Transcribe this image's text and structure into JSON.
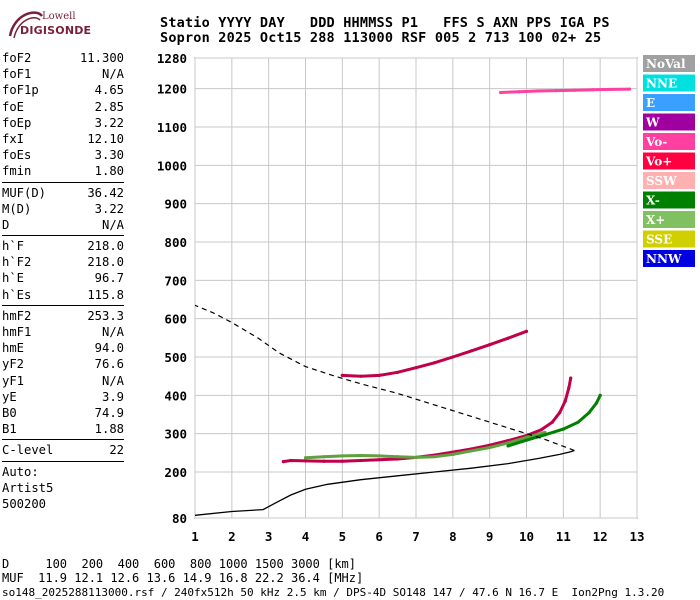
{
  "logo": {
    "line1": "Lowell",
    "line2": "DIGISONDE"
  },
  "header": {
    "line1": "Statio YYYY DAY   DDD HHMMSS P1   FFS S AXN PPS IGA PS",
    "line2": "Sopron 2025 Oct15 288 113000 RSF 005 2 713 100 02+ 25"
  },
  "params": {
    "group1": [
      {
        "name": "foF2",
        "value": "11.300"
      },
      {
        "name": "foF1",
        "value": "N/A"
      },
      {
        "name": "foF1p",
        "value": "4.65"
      },
      {
        "name": "foE",
        "value": "2.85"
      },
      {
        "name": "foEp",
        "value": "3.22"
      },
      {
        "name": "fxI",
        "value": "12.10"
      },
      {
        "name": "foEs",
        "value": "3.30"
      },
      {
        "name": "fmin",
        "value": "1.80"
      }
    ],
    "group2": [
      {
        "name": "MUF(D)",
        "value": "36.42"
      },
      {
        "name": "M(D)",
        "value": "3.22"
      },
      {
        "name": "D",
        "value": "N/A"
      }
    ],
    "group3": [
      {
        "name": "h`F",
        "value": "218.0"
      },
      {
        "name": "h`F2",
        "value": "218.0"
      },
      {
        "name": "h`E",
        "value": "96.7"
      },
      {
        "name": "h`Es",
        "value": "115.8"
      }
    ],
    "group4": [
      {
        "name": "hmF2",
        "value": "253.3"
      },
      {
        "name": "hmF1",
        "value": "N/A"
      },
      {
        "name": "hmE",
        "value": "94.0"
      },
      {
        "name": "yF2",
        "value": "76.6"
      },
      {
        "name": "yF1",
        "value": "N/A"
      },
      {
        "name": "yE",
        "value": "3.9"
      },
      {
        "name": "B0",
        "value": "74.9"
      },
      {
        "name": "B1",
        "value": "1.88"
      }
    ],
    "group5": [
      {
        "name": "C-level",
        "value": "22"
      }
    ],
    "auto": [
      "Auto:",
      "Artist5",
      "500200"
    ]
  },
  "chart_data": {
    "type": "scatter",
    "xlim": [
      1,
      13
    ],
    "ylim": [
      80,
      1280
    ],
    "x_ticks": [
      "1",
      "2",
      "3",
      "4",
      "5",
      "6",
      "7",
      "8",
      "9",
      "10",
      "11",
      "12",
      "13"
    ],
    "y_ticks": [
      "80",
      "200",
      "300",
      "400",
      "500",
      "600",
      "700",
      "800",
      "900",
      "1000",
      "1100",
      "1200",
      "1280"
    ],
    "grid": true,
    "legend": [
      {
        "label": "NoVal",
        "color": "#a0a0a0"
      },
      {
        "label": "NNE",
        "color": "#00e0e0"
      },
      {
        "label": "E",
        "color": "#3aa0ff"
      },
      {
        "label": "W",
        "color": "#a000a0"
      },
      {
        "label": "Vo-",
        "color": "#ff40a0"
      },
      {
        "label": "Vo+",
        "color": "#ff0040"
      },
      {
        "label": "SSW",
        "color": "#ffb0b0"
      },
      {
        "label": "X-",
        "color": "#008000"
      },
      {
        "label": "X+",
        "color": "#80c060"
      },
      {
        "label": "SSE",
        "color": "#d0d000"
      },
      {
        "label": "NNW",
        "color": "#0000e0"
      }
    ],
    "series": [
      {
        "color": "#c0004a",
        "points": [
          [
            3.4,
            227
          ],
          [
            3.6,
            230
          ],
          [
            4,
            229
          ],
          [
            4.5,
            228
          ],
          [
            5,
            228
          ],
          [
            5.5,
            230
          ],
          [
            6,
            232
          ],
          [
            6.5,
            234
          ],
          [
            7,
            238
          ],
          [
            7.5,
            244
          ],
          [
            8,
            252
          ],
          [
            8.5,
            260
          ],
          [
            9,
            270
          ],
          [
            9.5,
            282
          ],
          [
            10,
            295
          ],
          [
            10.4,
            310
          ],
          [
            10.7,
            330
          ],
          [
            10.9,
            355
          ],
          [
            11.05,
            385
          ],
          [
            11.15,
            420
          ],
          [
            11.2,
            445
          ]
        ]
      },
      {
        "color": "#60a040",
        "points": [
          [
            4,
            237
          ],
          [
            4.5,
            240
          ],
          [
            5,
            242
          ],
          [
            5.5,
            243
          ],
          [
            6,
            242
          ],
          [
            6.5,
            240
          ],
          [
            7,
            238
          ],
          [
            7.5,
            240
          ],
          [
            8,
            246
          ],
          [
            8.5,
            255
          ],
          [
            9,
            264
          ],
          [
            9.5,
            276
          ],
          [
            10,
            290
          ],
          [
            10.5,
            303
          ]
        ]
      },
      {
        "color": "#008000",
        "points": [
          [
            9.5,
            268
          ],
          [
            10,
            283
          ],
          [
            10.5,
            297
          ],
          [
            11,
            312
          ],
          [
            11.4,
            330
          ],
          [
            11.7,
            355
          ],
          [
            11.9,
            380
          ],
          [
            12,
            400
          ]
        ]
      },
      {
        "color": "#c0004a",
        "points": [
          [
            5,
            452
          ],
          [
            5.5,
            450
          ],
          [
            6,
            452
          ],
          [
            6.5,
            460
          ],
          [
            7,
            472
          ],
          [
            7.5,
            485
          ],
          [
            8,
            500
          ],
          [
            8.5,
            516
          ],
          [
            9,
            532
          ],
          [
            9.5,
            549
          ],
          [
            10,
            567
          ]
        ]
      },
      {
        "color": "#ff40a0",
        "points": [
          [
            9.3,
            1190
          ],
          [
            9.8,
            1192
          ],
          [
            10.3,
            1194
          ],
          [
            10.8,
            1195
          ],
          [
            11.3,
            1196
          ],
          [
            11.8,
            1197
          ],
          [
            12.3,
            1198
          ],
          [
            12.8,
            1199
          ]
        ]
      }
    ],
    "profile": {
      "color": "#000000",
      "points": [
        [
          1,
          87
        ],
        [
          2,
          97
        ],
        [
          2.85,
          102
        ],
        [
          3.2,
          120
        ],
        [
          3.6,
          140
        ],
        [
          4,
          155
        ],
        [
          4.6,
          168
        ],
        [
          5.5,
          180
        ],
        [
          6.5,
          190
        ],
        [
          7.5,
          200
        ],
        [
          8.5,
          210
        ],
        [
          9.5,
          222
        ],
        [
          10.3,
          235
        ],
        [
          10.9,
          246
        ],
        [
          11.2,
          253
        ],
        [
          11.3,
          256
        ]
      ]
    },
    "extrapolation": {
      "color": "#000000",
      "dashed": true,
      "points": [
        [
          11.3,
          256
        ],
        [
          10.5,
          285
        ],
        [
          9.5,
          315
        ],
        [
          8.5,
          345
        ],
        [
          7.5,
          375
        ],
        [
          6.5,
          405
        ],
        [
          5.5,
          430
        ],
        [
          4.8,
          450
        ],
        [
          4,
          475
        ],
        [
          3.3,
          510
        ],
        [
          2.7,
          550
        ],
        [
          2,
          590
        ],
        [
          1.5,
          615
        ],
        [
          1,
          635
        ]
      ]
    }
  },
  "footer": {
    "d_row": "D     100  200  400  600  800 1000 1500 3000 [km]",
    "muf_row": "MUF  11.9 12.1 12.6 13.6 14.9 16.8 22.2 36.4 [MHz]",
    "info": "so148_2025288113000.rsf / 240fx512h 50 kHz 2.5 km / DPS-4D SO148 147 / 47.6 N 16.7 E  Ion2Png 1.3.20"
  }
}
